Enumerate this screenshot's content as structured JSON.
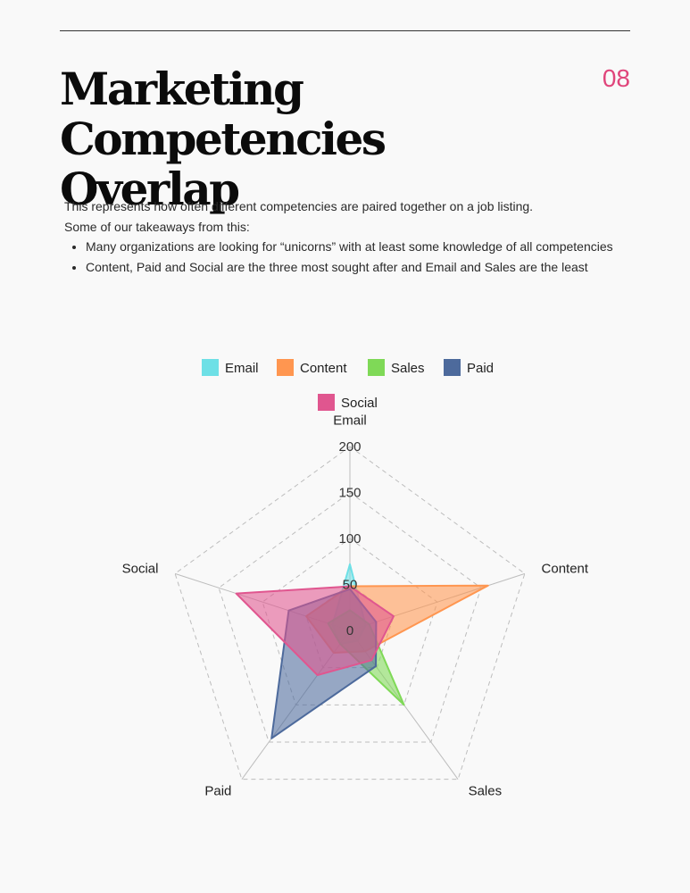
{
  "header": {
    "page_number": "08",
    "title_line1": "Marketing",
    "title_line2": "Competencies Overlap"
  },
  "intro": {
    "line1": "This represents how often different competencies are paired together on a job listing.",
    "line2": "Some of our takeaways from this:",
    "bullets": [
      "Many organizations are looking for “unicorns” with at least some knowledge of all competencies",
      "Content, Paid and Social are the three most sought after and Email and Sales are the least"
    ]
  },
  "chart_data": {
    "type": "radar",
    "axes": [
      "Email",
      "Content",
      "Sales",
      "Paid",
      "Social"
    ],
    "ticks": [
      0,
      50,
      100,
      150,
      200
    ],
    "range": [
      0,
      200
    ],
    "legend_position": "top",
    "series": [
      {
        "name": "Email",
        "color": "#6ee0e6",
        "values": [
          72,
          18,
          14,
          18,
          20
        ]
      },
      {
        "name": "Content",
        "color": "#ff9650",
        "values": [
          48,
          158,
          28,
          30,
          50
        ]
      },
      {
        "name": "Sales",
        "color": "#7fd957",
        "values": [
          22,
          22,
          100,
          18,
          25
        ]
      },
      {
        "name": "Paid",
        "color": "#4d6a9c",
        "values": [
          45,
          30,
          48,
          145,
          70
        ]
      },
      {
        "name": "Social",
        "color": "#e0568f",
        "values": [
          48,
          50,
          40,
          60,
          130
        ]
      }
    ]
  }
}
